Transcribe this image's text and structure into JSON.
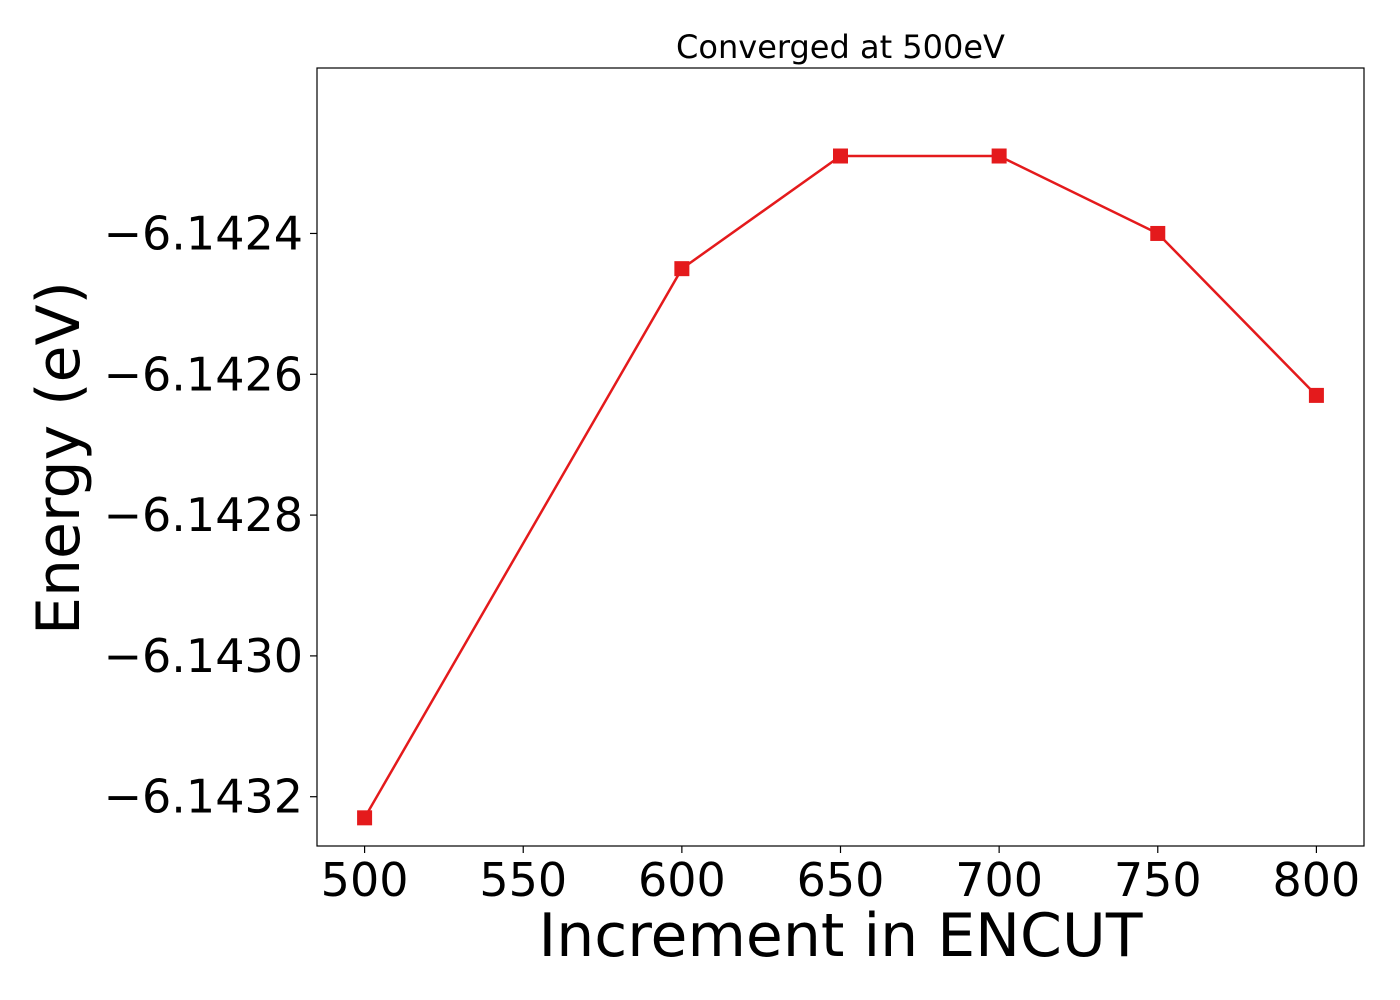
{
  "chart_data": {
    "type": "line",
    "title": "Converged at 500eV",
    "xlabel": "Increment in ENCUT",
    "ylabel": "Energy (eV)",
    "x": [
      500,
      600,
      650,
      700,
      750,
      800
    ],
    "series": [
      {
        "values": [
          -6.14323,
          -6.14245,
          -6.14229,
          -6.14229,
          -6.1424,
          -6.14263
        ],
        "color": "#e41a1c",
        "marker": "square"
      }
    ],
    "xticks": [
      500,
      550,
      600,
      650,
      700,
      750,
      800
    ],
    "xtick_labels": [
      "500",
      "550",
      "600",
      "650",
      "700",
      "750",
      "800"
    ],
    "yticks": [
      -6.1432,
      -6.143,
      -6.1428,
      -6.1426,
      -6.1424
    ],
    "ytick_labels": [
      "−6.1432",
      "−6.1430",
      "−6.1428",
      "−6.1426",
      "−6.1424"
    ],
    "xlim": [
      485,
      815
    ],
    "ylim": [
      -6.14327,
      -6.142165
    ],
    "grid": false,
    "legend": "none"
  }
}
